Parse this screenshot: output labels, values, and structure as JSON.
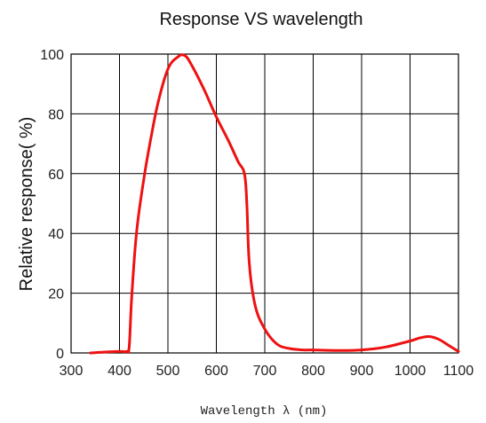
{
  "chart_data": {
    "type": "line",
    "title": "Response VS wavelength",
    "xlabel": "Wavelength λ (nm)",
    "ylabel": "Relative response( %)",
    "xlim": [
      300,
      1100
    ],
    "ylim": [
      0,
      100
    ],
    "x_ticks": [
      "300",
      "400",
      "500",
      "600",
      "700",
      "800",
      "900",
      "1000",
      "1100"
    ],
    "y_ticks": [
      "0",
      "20",
      "40",
      "60",
      "80",
      "100"
    ],
    "grid": true,
    "series": [
      {
        "color": "#ee1111",
        "x": [
          340,
          370,
          400,
          415,
          420,
          425,
          435,
          450,
          465,
          480,
          500,
          520,
          535,
          550,
          575,
          600,
          625,
          645,
          658,
          663,
          668,
          680,
          700,
          725,
          750,
          780,
          800,
          850,
          900,
          950,
          1000,
          1020,
          1040,
          1060,
          1080,
          1100
        ],
        "y": [
          0,
          0.3,
          0.5,
          0.5,
          2,
          18,
          40,
          58,
          72,
          84,
          95,
          99,
          99.5,
          96,
          88,
          79,
          71,
          64,
          60,
          50,
          30,
          16,
          8,
          3,
          1.5,
          1,
          1,
          0.8,
          1,
          2,
          4,
          5,
          5.5,
          4.5,
          2.5,
          0.5
        ]
      }
    ]
  }
}
